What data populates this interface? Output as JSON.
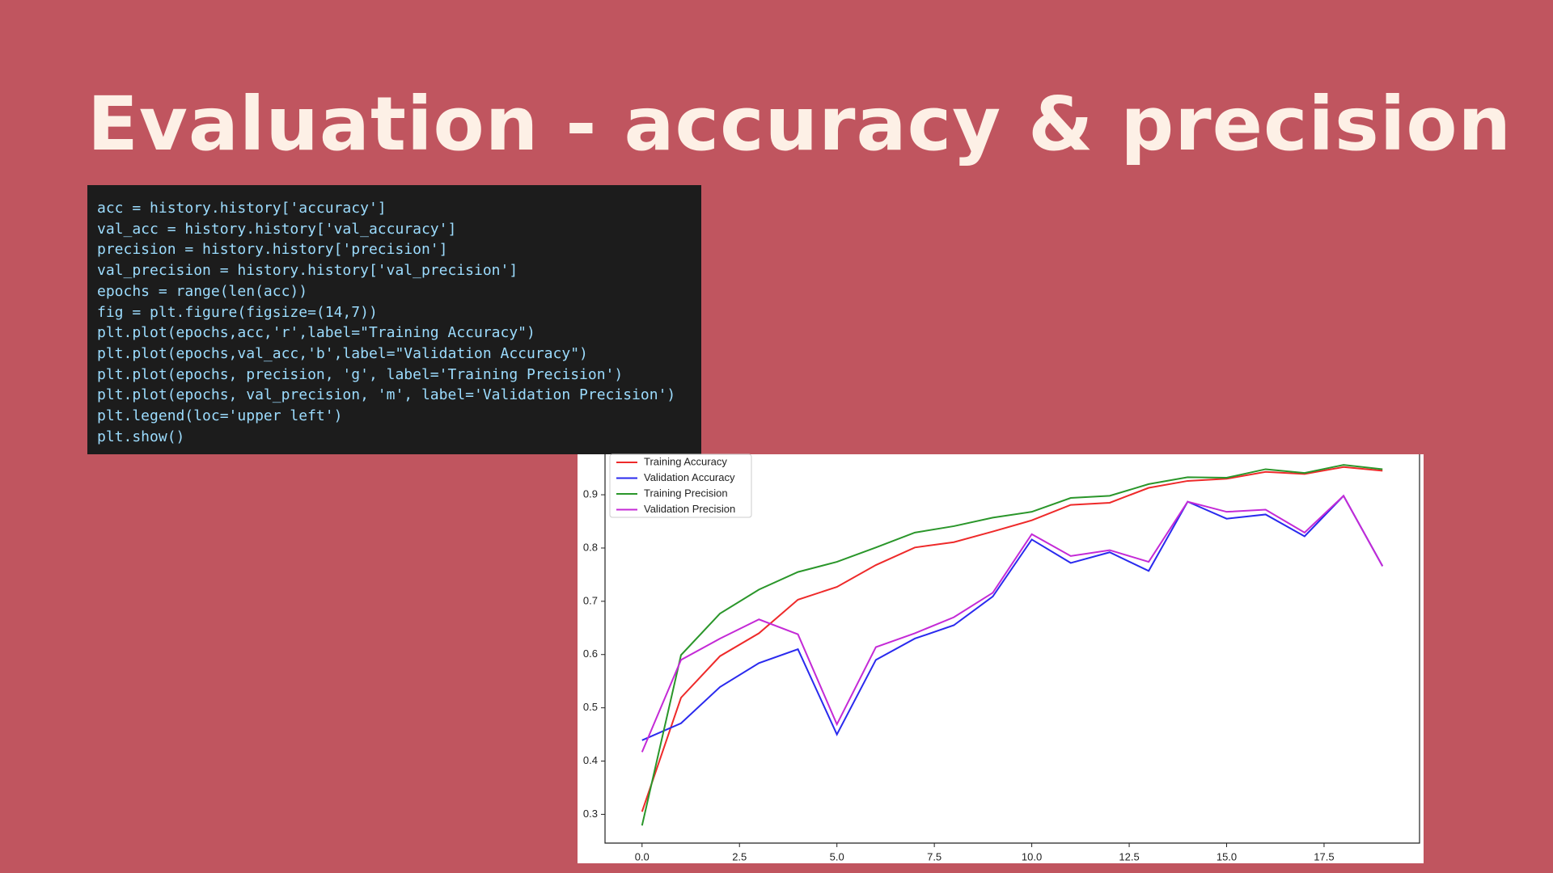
{
  "title": "Evaluation - accuracy & precision",
  "code_lines": [
    "acc = history.history['accuracy']",
    "val_acc = history.history['val_accuracy']",
    "precision = history.history['precision']",
    "val_precision = history.history['val_precision']",
    "epochs = range(len(acc))",
    "fig = plt.figure(figsize=(14,7))",
    "plt.plot(epochs,acc,'r',label=\"Training Accuracy\")",
    "plt.plot(epochs,val_acc,'b',label=\"Validation Accuracy\")",
    "plt.plot(epochs, precision, 'g', label='Training Precision')",
    "plt.plot(epochs, val_precision, 'm', label='Validation Precision')",
    "plt.legend(loc='upper left')",
    "plt.show()"
  ],
  "chart_data": {
    "type": "line",
    "x": [
      0,
      1,
      2,
      3,
      4,
      5,
      6,
      7,
      8,
      9,
      10,
      11,
      12,
      13,
      14,
      15,
      16,
      17,
      18,
      19
    ],
    "series": [
      {
        "name": "Training Accuracy",
        "color": "#ee2a2a",
        "values": [
          0.305,
          0.519,
          0.597,
          0.64,
          0.703,
          0.727,
          0.768,
          0.801,
          0.811,
          0.831,
          0.852,
          0.881,
          0.885,
          0.913,
          0.926,
          0.93,
          0.943,
          0.939,
          0.952,
          0.945
        ]
      },
      {
        "name": "Validation Accuracy",
        "color": "#2a2aee",
        "values": [
          0.439,
          0.471,
          0.539,
          0.584,
          0.61,
          0.45,
          0.59,
          0.63,
          0.655,
          0.709,
          0.816,
          0.772,
          0.792,
          0.757,
          0.887,
          0.855,
          0.863,
          0.822,
          0.898,
          0.766
        ]
      },
      {
        "name": "Training Precision",
        "color": "#2a962a",
        "values": [
          0.279,
          0.599,
          0.677,
          0.722,
          0.755,
          0.774,
          0.801,
          0.829,
          0.841,
          0.857,
          0.868,
          0.894,
          0.898,
          0.92,
          0.933,
          0.932,
          0.948,
          0.941,
          0.956,
          0.948
        ]
      },
      {
        "name": "Validation Precision",
        "color": "#c42ad6",
        "values": [
          0.417,
          0.59,
          0.63,
          0.666,
          0.638,
          0.469,
          0.614,
          0.64,
          0.67,
          0.716,
          0.826,
          0.785,
          0.796,
          0.774,
          0.887,
          0.868,
          0.872,
          0.829,
          0.898,
          0.766
        ]
      }
    ],
    "xlim": [
      -0.95,
      19.95
    ],
    "ylim": [
      0.246,
      0.976
    ],
    "xticks": [
      {
        "value": 0,
        "label": "0.0"
      },
      2.5,
      {
        "value": 5,
        "label": "5.0"
      },
      7.5,
      {
        "value": 10,
        "label": "10.0"
      },
      12.5,
      {
        "value": 15,
        "label": "15.0"
      },
      17.5
    ],
    "yticks": [
      0.3,
      0.4,
      0.5,
      0.6,
      0.7,
      0.8,
      0.9
    ],
    "legend": "upper left"
  }
}
